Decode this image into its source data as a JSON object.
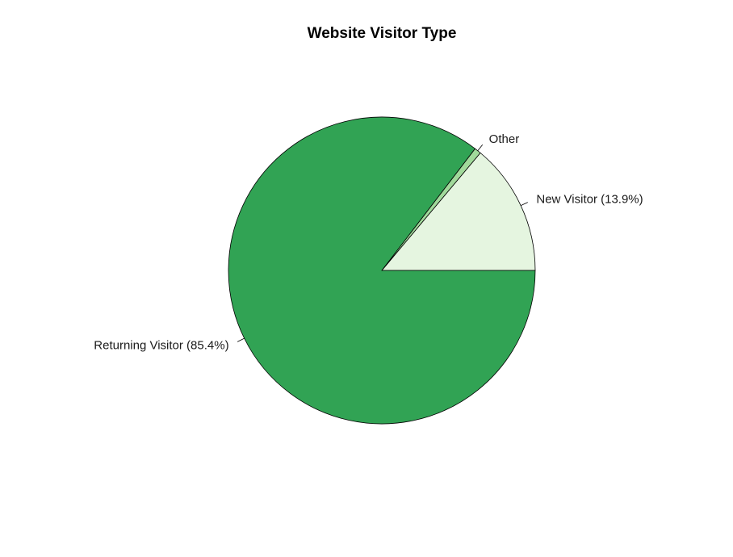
{
  "chart_data": {
    "type": "pie",
    "title": "Website Visitor Type",
    "start_angle_deg": 0,
    "direction": "counterclockwise",
    "slices": [
      {
        "label": "New Visitor (13.9%)",
        "value": 13.9,
        "color": "#e5f5e0"
      },
      {
        "label": "Other",
        "value": 0.7,
        "color": "#a1d99b"
      },
      {
        "label": "Returning Visitor (85.4%)",
        "value": 85.4,
        "color": "#31a354"
      }
    ],
    "legend": "none"
  }
}
